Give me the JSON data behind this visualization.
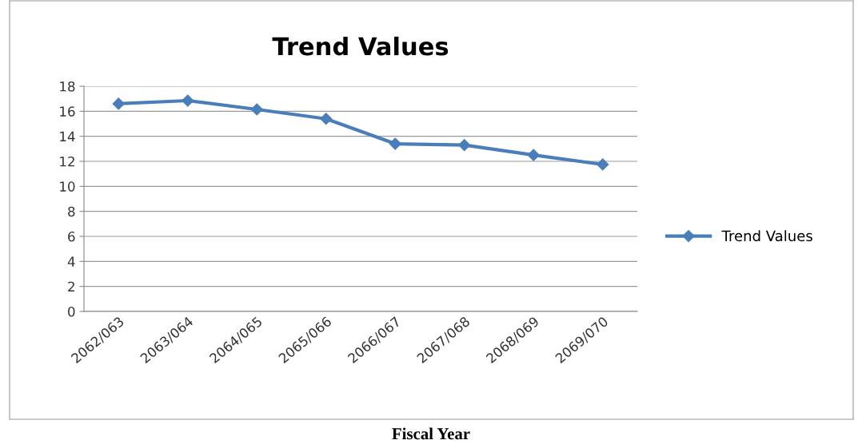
{
  "chart_data": {
    "type": "line",
    "title": "Trend Values",
    "xlabel": "Fiscal Year",
    "categories": [
      "2062/063",
      "2063/064",
      "2064/065",
      "2065/066",
      "2066/067",
      "2067/068",
      "2068/069",
      "2069/070"
    ],
    "series": [
      {
        "name": "Trend Values",
        "color": "#4a7ebb",
        "values": [
          16.6,
          16.85,
          16.15,
          15.4,
          13.4,
          13.3,
          12.5,
          11.75
        ]
      }
    ],
    "ylim": [
      0,
      18
    ],
    "yticks": [
      0,
      2,
      4,
      6,
      8,
      10,
      12,
      14,
      16,
      18
    ],
    "grid": "y",
    "legend": "right",
    "marker": "diamond",
    "line_style": "solid"
  }
}
